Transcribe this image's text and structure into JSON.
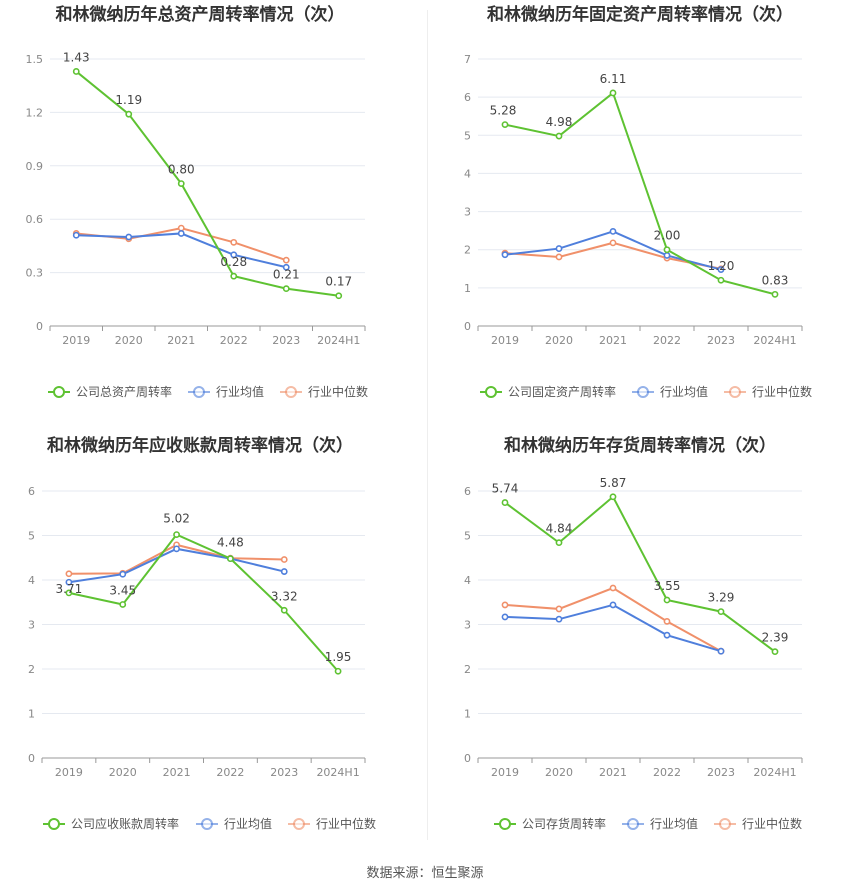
{
  "footer": {
    "label": "数据来源：",
    "source": "恒生聚源"
  },
  "colors": {
    "company": "#5ec232",
    "industry_avg": "#4f7fdc",
    "industry_median": "#f0906a",
    "grid": "#e5e9f0",
    "axis_text": "#888888"
  },
  "chart_data": [
    {
      "type": "line",
      "title": "和林微纳历年总资产周转率情况（次）",
      "categories": [
        "2019",
        "2020",
        "2021",
        "2022",
        "2023",
        "2024H1"
      ],
      "yticks": [
        "0",
        "0.3",
        "0.6",
        "0.9",
        "1.2",
        "1.5"
      ],
      "ylim": [
        0,
        1.5
      ],
      "grid": true,
      "legend_position": "bottom",
      "series": [
        {
          "name": "公司总资产周转率",
          "key": "company",
          "values": [
            1.43,
            1.19,
            0.8,
            0.28,
            0.21,
            0.17
          ],
          "labels": [
            "1.43",
            "1.19",
            "0.80",
            "0.28",
            "0.21",
            "0.17"
          ]
        },
        {
          "name": "行业均值",
          "key": "industry_avg",
          "values": [
            0.51,
            0.5,
            0.52,
            0.4,
            0.33,
            null
          ]
        },
        {
          "name": "行业中位数",
          "key": "industry_median",
          "values": [
            0.52,
            0.49,
            0.55,
            0.47,
            0.37,
            null
          ]
        }
      ]
    },
    {
      "type": "line",
      "title": "和林微纳历年固定资产周转率情况（次）",
      "categories": [
        "2019",
        "2020",
        "2021",
        "2022",
        "2023",
        "2024H1"
      ],
      "yticks": [
        "0",
        "1",
        "2",
        "3",
        "4",
        "5",
        "6",
        "7"
      ],
      "ylim": [
        0,
        7
      ],
      "grid": true,
      "legend_position": "bottom",
      "series": [
        {
          "name": "公司固定资产周转率",
          "key": "company",
          "values": [
            5.28,
            4.98,
            6.11,
            2.0,
            1.2,
            0.83
          ],
          "labels": [
            "5.28",
            "4.98",
            "6.11",
            "2.00",
            "1.20",
            "0.83"
          ]
        },
        {
          "name": "行业均值",
          "key": "industry_avg",
          "values": [
            1.87,
            2.03,
            2.48,
            1.85,
            1.48,
            null
          ]
        },
        {
          "name": "行业中位数",
          "key": "industry_median",
          "values": [
            1.91,
            1.81,
            2.18,
            1.78,
            1.5,
            null
          ]
        }
      ]
    },
    {
      "type": "line",
      "title": "和林微纳历年应收账款周转率情况（次）",
      "categories": [
        "2019",
        "2020",
        "2021",
        "2022",
        "2023",
        "2024H1"
      ],
      "yticks": [
        "0",
        "1",
        "2",
        "3",
        "4",
        "5",
        "6"
      ],
      "ylim": [
        0,
        6
      ],
      "grid": true,
      "legend_position": "bottom",
      "series": [
        {
          "name": "公司应收账款周转率",
          "key": "company",
          "values": [
            3.71,
            3.45,
            5.02,
            4.48,
            3.32,
            1.95
          ],
          "labels": [
            "3.71",
            "3.45",
            "5.02",
            "4.48",
            "3.32",
            "1.95"
          ]
        },
        {
          "name": "行业均值",
          "key": "industry_avg",
          "values": [
            3.95,
            4.13,
            4.7,
            4.48,
            4.19,
            null
          ]
        },
        {
          "name": "行业中位数",
          "key": "industry_median",
          "values": [
            4.14,
            4.15,
            4.79,
            4.49,
            4.46,
            null
          ]
        }
      ]
    },
    {
      "type": "line",
      "title": "和林微纳历年存货周转率情况（次）",
      "categories": [
        "2019",
        "2020",
        "2021",
        "2022",
        "2023",
        "2024H1"
      ],
      "yticks": [
        "0",
        "1",
        "2",
        "3",
        "4",
        "5",
        "6"
      ],
      "ylim": [
        0,
        6
      ],
      "grid": true,
      "legend_position": "bottom",
      "series": [
        {
          "name": "公司存货周转率",
          "key": "company",
          "values": [
            5.74,
            4.84,
            5.87,
            3.55,
            3.29,
            2.39
          ],
          "labels": [
            "5.74",
            "4.84",
            "5.87",
            "3.55",
            "3.29",
            "2.39"
          ]
        },
        {
          "name": "行业均值",
          "key": "industry_avg",
          "values": [
            3.17,
            3.12,
            3.44,
            2.76,
            2.4,
            null
          ]
        },
        {
          "name": "行业中位数",
          "key": "industry_median",
          "values": [
            3.44,
            3.35,
            3.82,
            3.07,
            2.4,
            null
          ]
        }
      ]
    }
  ]
}
